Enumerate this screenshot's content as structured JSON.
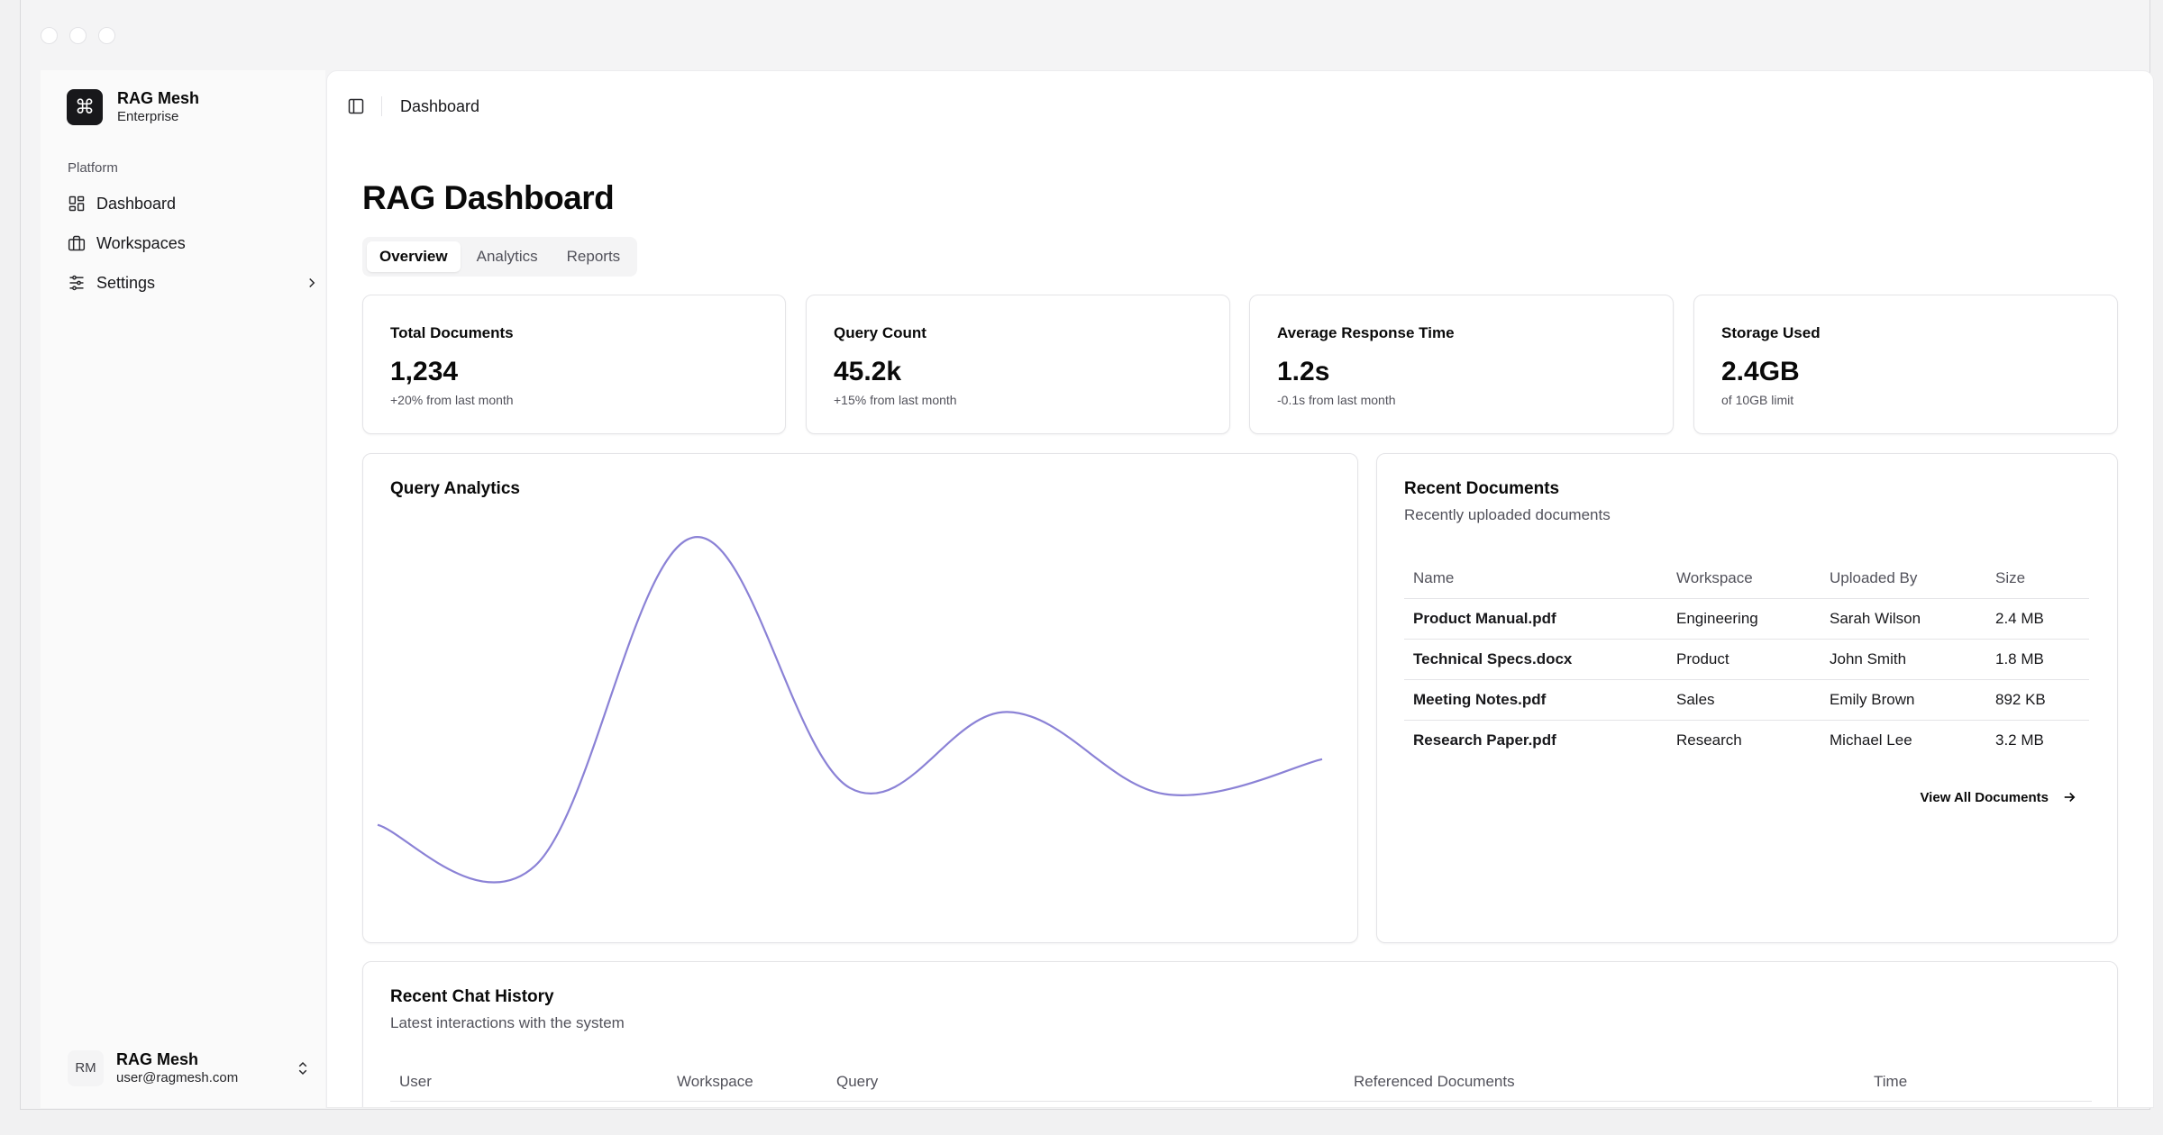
{
  "app": {
    "name": "RAG Mesh",
    "plan": "Enterprise",
    "logo_glyph": "⌘"
  },
  "sidebar": {
    "group_label": "Platform",
    "items": [
      {
        "label": "Dashboard",
        "icon": "dashboard-grid-icon"
      },
      {
        "label": "Workspaces",
        "icon": "briefcase-icon"
      },
      {
        "label": "Settings",
        "icon": "sliders-icon",
        "has_submenu": true
      }
    ],
    "user": {
      "initials": "RM",
      "name": "RAG Mesh",
      "email": "user@ragmesh.com"
    }
  },
  "header": {
    "breadcrumb": "Dashboard"
  },
  "page": {
    "title": "RAG Dashboard",
    "tabs": [
      {
        "label": "Overview",
        "active": true
      },
      {
        "label": "Analytics",
        "active": false
      },
      {
        "label": "Reports",
        "active": false
      }
    ]
  },
  "stats": [
    {
      "title": "Total Documents",
      "value": "1,234",
      "note": "+20% from last month"
    },
    {
      "title": "Query Count",
      "value": "45.2k",
      "note": "+15% from last month"
    },
    {
      "title": "Average Response Time",
      "value": "1.2s",
      "note": "-0.1s from last month"
    },
    {
      "title": "Storage Used",
      "value": "2.4GB",
      "note": "of 10GB limit"
    }
  ],
  "query_analytics": {
    "title": "Query Analytics",
    "line_color": "#8b82d6"
  },
  "chart_data": {
    "type": "line",
    "title": "Query Analytics",
    "x": [
      0,
      1,
      2,
      3,
      4,
      5,
      6
    ],
    "series": [
      {
        "values": [
          30,
          10,
          170,
          48,
          85,
          45,
          62
        ]
      }
    ],
    "ylim": [
      0,
      180
    ],
    "grid": false,
    "axes_visible": false,
    "smooth": true
  },
  "recent_documents": {
    "title": "Recent Documents",
    "subtitle": "Recently uploaded documents",
    "columns": [
      "Name",
      "Workspace",
      "Uploaded By",
      "Size"
    ],
    "rows": [
      [
        "Product Manual.pdf",
        "Engineering",
        "Sarah Wilson",
        "2.4 MB"
      ],
      [
        "Technical Specs.docx",
        "Product",
        "John Smith",
        "1.8 MB"
      ],
      [
        "Meeting Notes.pdf",
        "Sales",
        "Emily Brown",
        "892 KB"
      ],
      [
        "Research Paper.pdf",
        "Research",
        "Michael Lee",
        "3.2 MB"
      ]
    ],
    "view_all_label": "View All Documents"
  },
  "chat_history": {
    "title": "Recent Chat History",
    "subtitle": "Latest interactions with the system",
    "columns": [
      "User",
      "Workspace",
      "Query",
      "Referenced Documents",
      "Time"
    ]
  }
}
